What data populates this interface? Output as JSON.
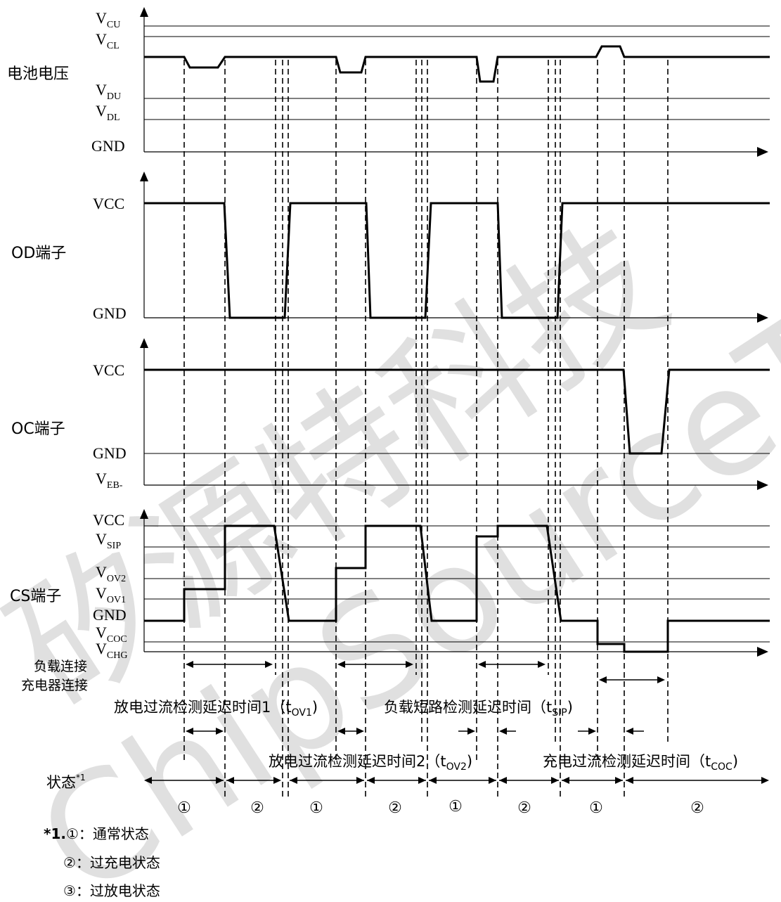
{
  "signals": {
    "battery": {
      "name": "电池电压",
      "levels": {
        "VCU": {
          "main": "V",
          "sub": "CU"
        },
        "VCL": {
          "main": "V",
          "sub": "CL"
        },
        "VDU": {
          "main": "V",
          "sub": "DU"
        },
        "VDL": {
          "main": "V",
          "sub": "DL"
        },
        "GND": "GND"
      }
    },
    "od": {
      "name": "OD端子",
      "levels": {
        "VCC": "VCC",
        "GND": "GND"
      }
    },
    "oc": {
      "name": "OC端子",
      "levels": {
        "VCC": "VCC",
        "GND": "GND",
        "VEB": {
          "main": "V",
          "sub": "EB-"
        }
      }
    },
    "cs": {
      "name": "CS端子",
      "levels": {
        "VCC": "VCC",
        "VSIP": {
          "main": "V",
          "sub": "SIP"
        },
        "VOV2": {
          "main": "V",
          "sub": "OV2"
        },
        "VOV1": {
          "main": "V",
          "sub": "OV1"
        },
        "GND": "GND",
        "VCOC": {
          "main": "V",
          "sub": "COC"
        },
        "VCHG": {
          "main": "V",
          "sub": "CHG"
        }
      }
    }
  },
  "connection_labels": {
    "load": "负载连接",
    "charger": "充电器连接"
  },
  "delay_labels": {
    "tov1": {
      "text": "放电过流检测延迟时间1（t",
      "sub": "OV1",
      "close": ")"
    },
    "tsip": {
      "text": "负载短路检测延迟时间（t",
      "sub": "SIP",
      "close": ")"
    },
    "tov2": {
      "text": "放电过流检测延迟时间2（t",
      "sub": "OV2",
      "close": ")"
    },
    "tcoc": {
      "text": "充电过流检测延迟时间（t",
      "sub": "COC",
      "close": ")"
    }
  },
  "state_label": {
    "text": "状态",
    "sup": "*1"
  },
  "states": [
    "①",
    "②",
    "①",
    "②",
    "①",
    "②",
    "①",
    "②"
  ],
  "legend": {
    "prefix": "*1.",
    "items": [
      {
        "symbol": "①",
        "text": "：通常状态"
      },
      {
        "symbol": "②",
        "text": "：过充电状态"
      },
      {
        "symbol": "③",
        "text": "：过放电状态"
      }
    ]
  },
  "watermark": {
    "cn": "矽源特科技",
    "en": "ChipSourceTek"
  }
}
